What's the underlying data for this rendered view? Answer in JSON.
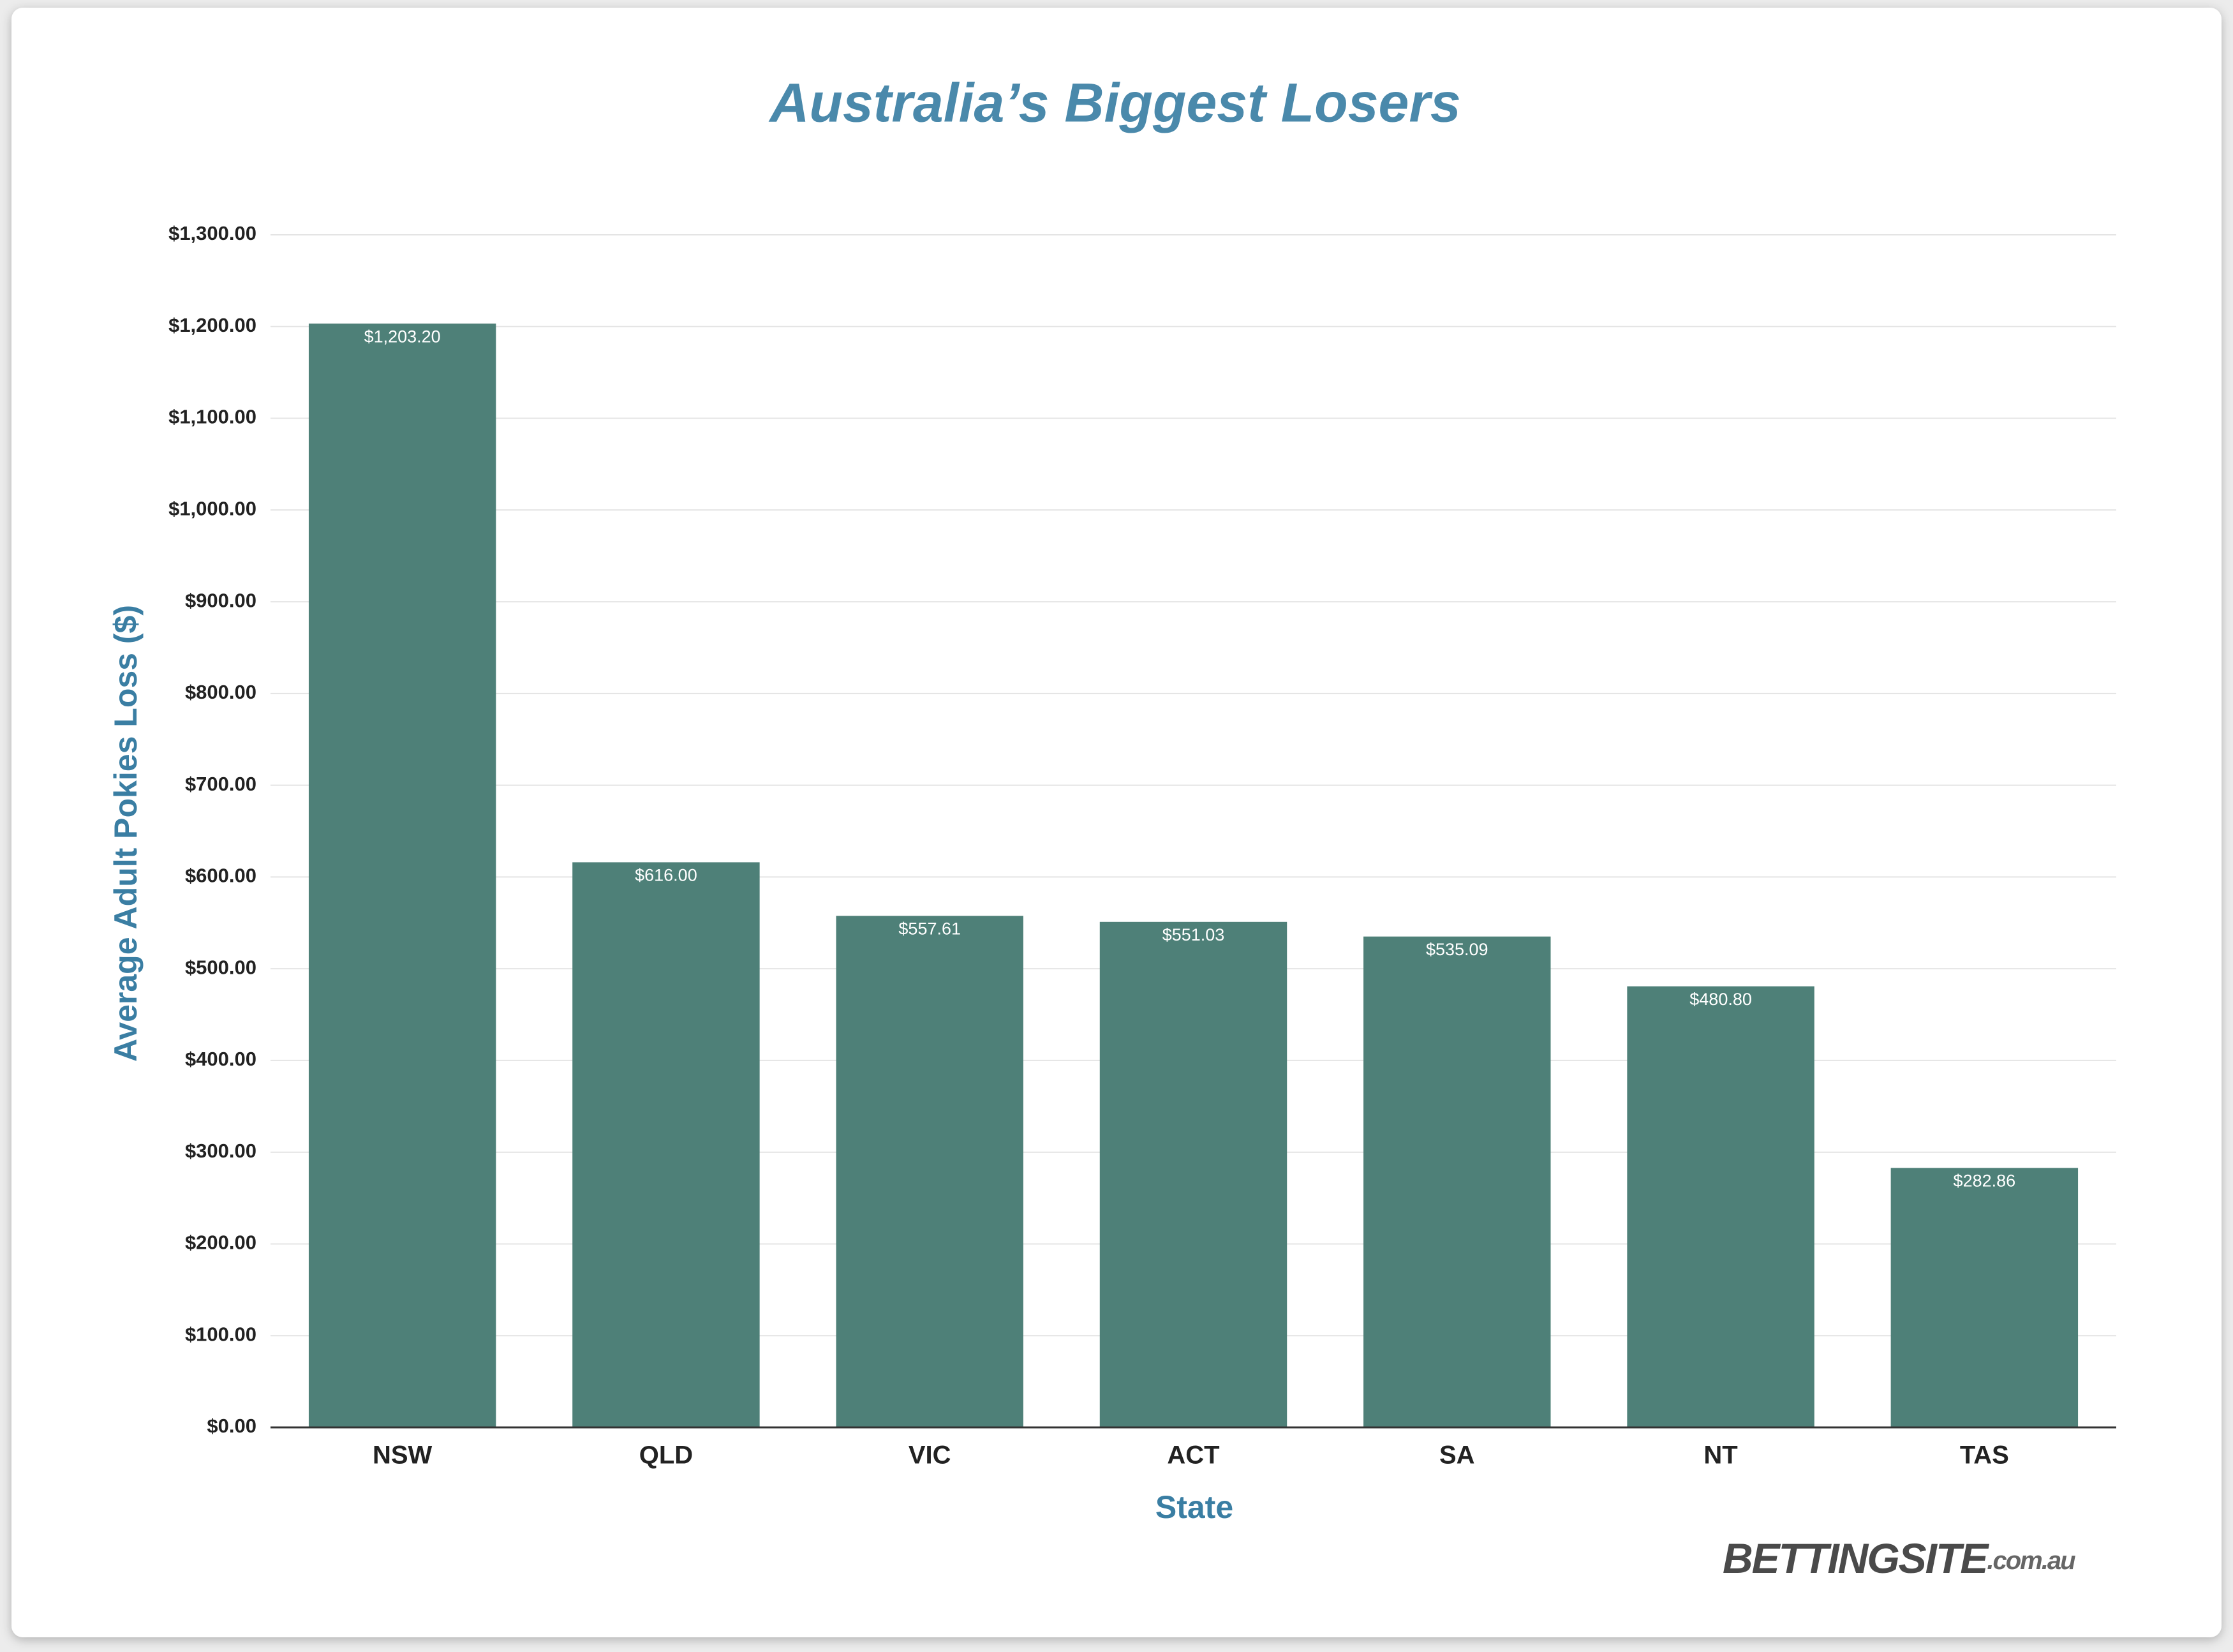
{
  "chart_data": {
    "type": "bar",
    "title": "Australia’s Biggest Losers",
    "x_label": "State",
    "y_label": "Average Adult Pokies Loss ($)",
    "categories": [
      "NSW",
      "QLD",
      "VIC",
      "ACT",
      "SA",
      "NT",
      "TAS"
    ],
    "values": [
      1203.2,
      616.0,
      557.61,
      551.03,
      535.09,
      480.8,
      282.86
    ],
    "value_labels": [
      "$1,203.20",
      "$616.00",
      "$557.61",
      "$551.03",
      "$535.09",
      "$480.80",
      "$282.86"
    ],
    "color": "#4e8078",
    "ylim": [
      0,
      1300
    ],
    "yticks": [
      {
        "value": 0,
        "label": "$0.00"
      },
      {
        "value": 100,
        "label": "$100.00"
      },
      {
        "value": 200,
        "label": "$200.00"
      },
      {
        "value": 300,
        "label": "$300.00"
      },
      {
        "value": 400,
        "label": "$400.00"
      },
      {
        "value": 500,
        "label": "$500.00"
      },
      {
        "value": 600,
        "label": "$600.00"
      },
      {
        "value": 700,
        "label": "$700.00"
      },
      {
        "value": 800,
        "label": "$800.00"
      },
      {
        "value": 900,
        "label": "$900.00"
      },
      {
        "value": 1000,
        "label": "$1,000.00"
      },
      {
        "value": 1100,
        "label": "$1,100.00"
      },
      {
        "value": 1200,
        "label": "$1,200.00"
      },
      {
        "value": 1300,
        "label": "$1,300.00"
      }
    ],
    "grid": true,
    "logo": "BETTINGSITE",
    "logo_suffix": ".com.au"
  }
}
